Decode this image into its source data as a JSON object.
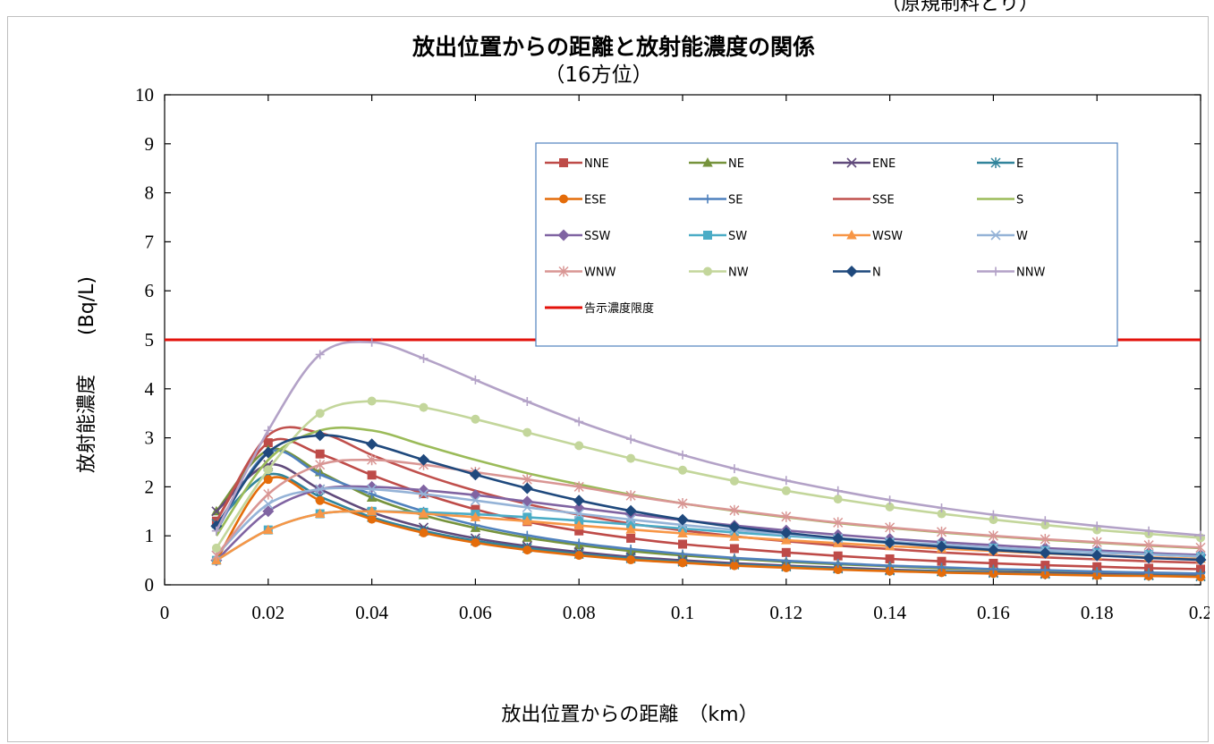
{
  "header_note": "（原規制料とり）",
  "chart_data": {
    "type": "line",
    "title": "放出位置からの距離と放射能濃度の関係",
    "subtitle": "（16方位）",
    "xlabel": "放出位置からの距離　（km）",
    "ylabel": "放射能濃度　　(Bq/L)",
    "xlim": [
      0,
      0.2
    ],
    "ylim": [
      0,
      10
    ],
    "xticks": [
      "0",
      "0.02",
      "0.04",
      "0.06",
      "0.08",
      "0.1",
      "0.12",
      "0.14",
      "0.16",
      "0.18",
      "0.2"
    ],
    "yticks": [
      "0",
      "1",
      "2",
      "3",
      "4",
      "5",
      "6",
      "7",
      "8",
      "9",
      "10"
    ],
    "grid": false,
    "legend_position": "top-right",
    "x": [
      0.01,
      0.02,
      0.03,
      0.04,
      0.05,
      0.06,
      0.07,
      0.08,
      0.09,
      0.1,
      0.11,
      0.12,
      0.13,
      0.14,
      0.15,
      0.16,
      0.17,
      0.18,
      0.19,
      0.2
    ],
    "series": [
      {
        "name": "NNE",
        "color": "#be4b48",
        "marker": "square",
        "values": [
          1.3,
          2.9,
          2.67,
          2.24,
          1.86,
          1.54,
          1.29,
          1.1,
          0.95,
          0.83,
          0.74,
          0.66,
          0.59,
          0.53,
          0.48,
          0.44,
          0.4,
          0.37,
          0.34,
          0.32
        ]
      },
      {
        "name": "NE",
        "color": "#76933c",
        "marker": "triangle",
        "values": [
          1.5,
          2.75,
          2.3,
          1.78,
          1.42,
          1.16,
          0.96,
          0.81,
          0.69,
          0.6,
          0.53,
          0.47,
          0.42,
          0.38,
          0.34,
          0.31,
          0.28,
          0.26,
          0.24,
          0.22
        ]
      },
      {
        "name": "ENE",
        "color": "#604a7b",
        "marker": "x",
        "values": [
          1.5,
          2.45,
          1.95,
          1.48,
          1.17,
          0.95,
          0.79,
          0.67,
          0.57,
          0.5,
          0.44,
          0.39,
          0.35,
          0.31,
          0.28,
          0.26,
          0.24,
          0.22,
          0.2,
          0.18
        ]
      },
      {
        "name": "E",
        "color": "#31849b",
        "marker": "asterisk",
        "values": [
          1.25,
          2.25,
          1.8,
          1.38,
          1.1,
          0.9,
          0.75,
          0.63,
          0.54,
          0.47,
          0.41,
          0.37,
          0.33,
          0.29,
          0.27,
          0.24,
          0.22,
          0.2,
          0.19,
          0.17
        ]
      },
      {
        "name": "ESE",
        "color": "#e46c0a",
        "marker": "circle",
        "values": [
          0.5,
          2.15,
          1.72,
          1.34,
          1.06,
          0.86,
          0.71,
          0.6,
          0.51,
          0.45,
          0.39,
          0.35,
          0.31,
          0.28,
          0.25,
          0.23,
          0.21,
          0.19,
          0.18,
          0.16
        ]
      },
      {
        "name": "SE",
        "color": "#4f81bd",
        "marker": "plus",
        "values": [
          1.1,
          2.7,
          2.25,
          1.85,
          1.5,
          1.22,
          1.01,
          0.85,
          0.73,
          0.63,
          0.55,
          0.49,
          0.44,
          0.39,
          0.36,
          0.32,
          0.3,
          0.27,
          0.25,
          0.23
        ]
      },
      {
        "name": "SSE",
        "color": "#c0504d",
        "marker": "none",
        "values": [
          1.3,
          3.05,
          3.1,
          2.65,
          2.25,
          1.92,
          1.65,
          1.43,
          1.25,
          1.11,
          0.99,
          0.89,
          0.8,
          0.73,
          0.66,
          0.61,
          0.56,
          0.52,
          0.48,
          0.45
        ]
      },
      {
        "name": "S",
        "color": "#9bbb59",
        "marker": "none",
        "values": [
          1.0,
          2.55,
          3.15,
          3.15,
          2.85,
          2.55,
          2.28,
          2.05,
          1.84,
          1.66,
          1.51,
          1.38,
          1.26,
          1.16,
          1.07,
          0.99,
          0.92,
          0.86,
          0.8,
          0.75
        ]
      },
      {
        "name": "SSW",
        "color": "#8064a2",
        "marker": "diamond",
        "values": [
          0.5,
          1.5,
          1.95,
          2.0,
          1.93,
          1.83,
          1.7,
          1.57,
          1.44,
          1.32,
          1.21,
          1.11,
          1.02,
          0.94,
          0.87,
          0.81,
          0.75,
          0.7,
          0.65,
          0.61
        ]
      },
      {
        "name": "SW",
        "color": "#4bacc6",
        "marker": "square",
        "values": [
          0.5,
          1.12,
          1.45,
          1.5,
          1.48,
          1.44,
          1.38,
          1.31,
          1.23,
          1.15,
          1.07,
          1.0,
          0.93,
          0.86,
          0.8,
          0.75,
          0.7,
          0.66,
          0.62,
          0.58
        ]
      },
      {
        "name": "WSW",
        "color": "#f79646",
        "marker": "triangle",
        "values": [
          0.5,
          1.12,
          1.45,
          1.5,
          1.45,
          1.38,
          1.3,
          1.21,
          1.13,
          1.05,
          0.98,
          0.91,
          0.85,
          0.79,
          0.74,
          0.69,
          0.64,
          0.6,
          0.56,
          0.53
        ]
      },
      {
        "name": "W",
        "color": "#95b3d7",
        "marker": "x",
        "values": [
          0.6,
          1.65,
          1.95,
          1.95,
          1.85,
          1.72,
          1.58,
          1.45,
          1.33,
          1.22,
          1.12,
          1.03,
          0.95,
          0.88,
          0.82,
          0.76,
          0.71,
          0.66,
          0.62,
          0.58
        ]
      },
      {
        "name": "WNW",
        "color": "#d99694",
        "marker": "asterisk",
        "values": [
          0.6,
          1.85,
          2.45,
          2.55,
          2.45,
          2.3,
          2.15,
          2.0,
          1.82,
          1.66,
          1.52,
          1.39,
          1.27,
          1.17,
          1.08,
          1.0,
          0.93,
          0.87,
          0.81,
          0.76
        ]
      },
      {
        "name": "NW",
        "color": "#c3d69b",
        "marker": "circle",
        "values": [
          0.75,
          2.35,
          3.5,
          3.75,
          3.62,
          3.38,
          3.11,
          2.84,
          2.58,
          2.34,
          2.12,
          1.92,
          1.75,
          1.59,
          1.45,
          1.33,
          1.22,
          1.12,
          1.04,
          0.96
        ]
      },
      {
        "name": "N",
        "color": "#1f497d",
        "marker": "diamond",
        "values": [
          1.2,
          2.7,
          3.05,
          2.87,
          2.55,
          2.25,
          1.97,
          1.72,
          1.51,
          1.33,
          1.18,
          1.06,
          0.95,
          0.86,
          0.78,
          0.71,
          0.65,
          0.6,
          0.55,
          0.51
        ]
      },
      {
        "name": "NNW",
        "color": "#b3a2c7",
        "marker": "plus",
        "values": [
          1.1,
          3.15,
          4.7,
          4.95,
          4.62,
          4.18,
          3.74,
          3.33,
          2.97,
          2.65,
          2.37,
          2.13,
          1.92,
          1.73,
          1.57,
          1.43,
          1.31,
          1.2,
          1.1,
          1.01
        ]
      }
    ],
    "limit_line": {
      "name": "告示濃度限度",
      "value": 5,
      "color": "#e3120b"
    }
  }
}
